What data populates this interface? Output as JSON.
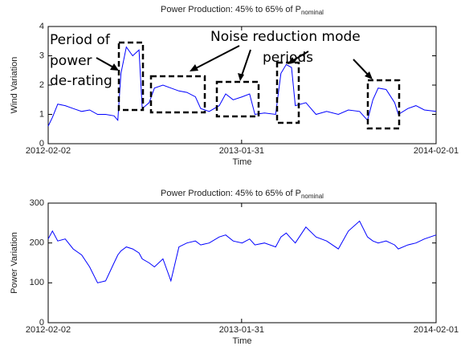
{
  "chart_data": [
    {
      "type": "line",
      "title": "Power Production: 45% to 65% of P",
      "title_subscript": "nominal",
      "xlabel": "Time",
      "ylabel": "Wind Variation",
      "xlim": [
        "2012-02-02",
        "2014-02-01"
      ],
      "xticks": [
        "2012-02-02",
        "2013-01-31",
        "2014-02-01"
      ],
      "ylim": [
        0,
        4
      ],
      "yticks": [
        0,
        1,
        2,
        3,
        4
      ],
      "annotations": [
        "Period of",
        "power",
        "de-rating",
        "Noise reduction mode",
        "periods"
      ],
      "x": [
        "2012-02-02",
        "2012-02-10",
        "2012-02-20",
        "2012-03-05",
        "2012-03-20",
        "2012-04-05",
        "2012-04-20",
        "2012-05-05",
        "2012-05-20",
        "2012-06-05",
        "2012-06-12",
        "2012-06-18",
        "2012-06-28",
        "2012-07-10",
        "2012-07-22",
        "2012-07-28",
        "2012-08-10",
        "2012-08-20",
        "2012-09-05",
        "2012-09-20",
        "2012-10-05",
        "2012-10-20",
        "2012-11-05",
        "2012-11-15",
        "2012-12-01",
        "2012-12-20",
        "2013-01-01",
        "2013-01-15",
        "2013-02-01",
        "2013-02-15",
        "2013-02-25",
        "2013-03-15",
        "2013-04-05",
        "2013-04-15",
        "2013-04-25",
        "2013-05-05",
        "2013-05-12",
        "2013-06-01",
        "2013-06-20",
        "2013-07-10",
        "2013-08-01",
        "2013-08-20",
        "2013-09-10",
        "2013-09-25",
        "2013-10-05",
        "2013-10-15",
        "2013-10-30",
        "2013-11-15",
        "2013-11-22",
        "2013-12-10",
        "2013-12-25",
        "2014-01-10",
        "2014-02-01"
      ],
      "series": [
        {
          "color": "#0000ff",
          "values": [
            0.6,
            0.9,
            1.35,
            1.3,
            1.2,
            1.1,
            1.15,
            1.0,
            1.0,
            0.95,
            0.8,
            2.4,
            3.3,
            3.0,
            3.2,
            1.2,
            1.4,
            1.9,
            2.0,
            1.9,
            1.8,
            1.75,
            1.6,
            1.2,
            1.1,
            1.3,
            1.7,
            1.5,
            1.6,
            1.7,
            1.0,
            1.05,
            1.0,
            2.4,
            2.7,
            2.6,
            1.3,
            1.4,
            1.0,
            1.1,
            1.0,
            1.15,
            1.1,
            0.8,
            1.5,
            1.9,
            1.85,
            1.4,
            1.0,
            1.2,
            1.3,
            1.15,
            1.1
          ]
        }
      ]
    },
    {
      "type": "line",
      "title": "Power Production: 45% to 65% of P",
      "title_subscript": "nominal",
      "xlabel": "Time",
      "ylabel": "Power Variation",
      "xlim": [
        "2012-02-02",
        "2014-02-01"
      ],
      "xticks": [
        "2012-02-02",
        "2013-01-31",
        "2014-02-01"
      ],
      "ylim": [
        0,
        300
      ],
      "yticks": [
        0,
        100,
        200,
        300
      ],
      "x": [
        "2012-02-02",
        "2012-02-10",
        "2012-02-20",
        "2012-03-05",
        "2012-03-20",
        "2012-04-05",
        "2012-04-20",
        "2012-05-05",
        "2012-05-20",
        "2012-06-05",
        "2012-06-12",
        "2012-06-18",
        "2012-06-28",
        "2012-07-10",
        "2012-07-22",
        "2012-07-28",
        "2012-08-10",
        "2012-08-20",
        "2012-09-05",
        "2012-09-20",
        "2012-10-05",
        "2012-10-20",
        "2012-11-05",
        "2012-11-15",
        "2012-12-01",
        "2012-12-20",
        "2013-01-01",
        "2013-01-15",
        "2013-02-01",
        "2013-02-15",
        "2013-02-25",
        "2013-03-15",
        "2013-04-05",
        "2013-04-15",
        "2013-04-25",
        "2013-05-05",
        "2013-05-12",
        "2013-06-01",
        "2013-06-20",
        "2013-07-10",
        "2013-08-01",
        "2013-08-20",
        "2013-09-10",
        "2013-09-25",
        "2013-10-05",
        "2013-10-15",
        "2013-10-30",
        "2013-11-15",
        "2013-11-22",
        "2013-12-10",
        "2013-12-25",
        "2014-01-10",
        "2014-02-01"
      ],
      "series": [
        {
          "color": "#0000ff",
          "values": [
            210,
            230,
            205,
            210,
            185,
            170,
            140,
            100,
            105,
            150,
            170,
            180,
            190,
            185,
            175,
            160,
            150,
            140,
            160,
            105,
            190,
            200,
            205,
            195,
            200,
            215,
            220,
            205,
            200,
            210,
            195,
            200,
            190,
            215,
            225,
            210,
            200,
            240,
            215,
            205,
            185,
            230,
            255,
            215,
            205,
            200,
            205,
            195,
            185,
            195,
            200,
            210,
            220
          ]
        }
      ]
    }
  ]
}
